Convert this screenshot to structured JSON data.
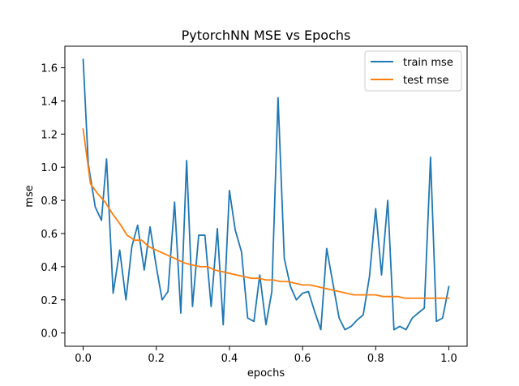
{
  "chart_data": {
    "type": "line",
    "title": "PytorchNN MSE vs Epochs",
    "xlabel": "epochs",
    "ylabel": "mse",
    "xlim": [
      -0.05,
      1.05
    ],
    "ylim": [
      -0.08,
      1.73
    ],
    "xticks": [
      0.0,
      0.2,
      0.4,
      0.6,
      0.8,
      1.0
    ],
    "xtick_labels": [
      "0.0",
      "0.2",
      "0.4",
      "0.6",
      "0.8",
      "1.0"
    ],
    "yticks": [
      0.0,
      0.2,
      0.4,
      0.6,
      0.8,
      1.0,
      1.2,
      1.4,
      1.6
    ],
    "ytick_labels": [
      "0.0",
      "0.2",
      "0.4",
      "0.6",
      "0.8",
      "1.0",
      "1.2",
      "1.4",
      "1.6"
    ],
    "grid": false,
    "legend_position": "top-right",
    "series": [
      {
        "name": "train mse",
        "color": "#1f77b4",
        "x": [
          0.0,
          0.014,
          0.033,
          0.05,
          0.064,
          0.082,
          0.1,
          0.117,
          0.133,
          0.149,
          0.167,
          0.183,
          0.2,
          0.216,
          0.232,
          0.25,
          0.267,
          0.283,
          0.299,
          0.316,
          0.333,
          0.35,
          0.367,
          0.383,
          0.4,
          0.416,
          0.433,
          0.45,
          0.467,
          0.483,
          0.5,
          0.516,
          0.533,
          0.55,
          0.567,
          0.583,
          0.6,
          0.616,
          0.633,
          0.65,
          0.666,
          0.683,
          0.7,
          0.716,
          0.733,
          0.75,
          0.766,
          0.783,
          0.8,
          0.816,
          0.833,
          0.85,
          0.866,
          0.883,
          0.9,
          0.916,
          0.933,
          0.95,
          0.966,
          0.983,
          1.0
        ],
        "y": [
          1.65,
          1.02,
          0.76,
          0.68,
          1.05,
          0.24,
          0.5,
          0.2,
          0.52,
          0.65,
          0.38,
          0.64,
          0.4,
          0.2,
          0.25,
          0.79,
          0.12,
          1.04,
          0.16,
          0.59,
          0.59,
          0.16,
          0.63,
          0.05,
          0.86,
          0.62,
          0.49,
          0.09,
          0.07,
          0.35,
          0.05,
          0.25,
          1.42,
          0.45,
          0.28,
          0.2,
          0.24,
          0.25,
          0.13,
          0.02,
          0.51,
          0.3,
          0.09,
          0.02,
          0.04,
          0.08,
          0.11,
          0.34,
          0.75,
          0.35,
          0.8,
          0.02,
          0.04,
          0.02,
          0.09,
          0.12,
          0.15,
          1.06,
          0.07,
          0.09,
          0.28
        ]
      },
      {
        "name": "test mse",
        "color": "#ff7f0e",
        "x": [
          0.0,
          0.02,
          0.04,
          0.06,
          0.08,
          0.1,
          0.12,
          0.14,
          0.16,
          0.18,
          0.2,
          0.22,
          0.24,
          0.26,
          0.28,
          0.3,
          0.32,
          0.34,
          0.36,
          0.38,
          0.4,
          0.42,
          0.44,
          0.46,
          0.48,
          0.5,
          0.52,
          0.54,
          0.56,
          0.58,
          0.6,
          0.62,
          0.64,
          0.66,
          0.68,
          0.7,
          0.72,
          0.74,
          0.76,
          0.78,
          0.8,
          0.82,
          0.84,
          0.86,
          0.88,
          0.9,
          0.92,
          0.94,
          0.96,
          0.98,
          1.0
        ],
        "y": [
          1.23,
          0.9,
          0.84,
          0.79,
          0.72,
          0.66,
          0.59,
          0.56,
          0.56,
          0.52,
          0.5,
          0.48,
          0.46,
          0.44,
          0.42,
          0.41,
          0.4,
          0.4,
          0.38,
          0.37,
          0.36,
          0.35,
          0.34,
          0.33,
          0.33,
          0.32,
          0.32,
          0.31,
          0.31,
          0.3,
          0.29,
          0.29,
          0.28,
          0.27,
          0.26,
          0.25,
          0.24,
          0.23,
          0.23,
          0.23,
          0.23,
          0.22,
          0.22,
          0.22,
          0.21,
          0.21,
          0.21,
          0.21,
          0.21,
          0.21,
          0.21
        ]
      }
    ]
  }
}
